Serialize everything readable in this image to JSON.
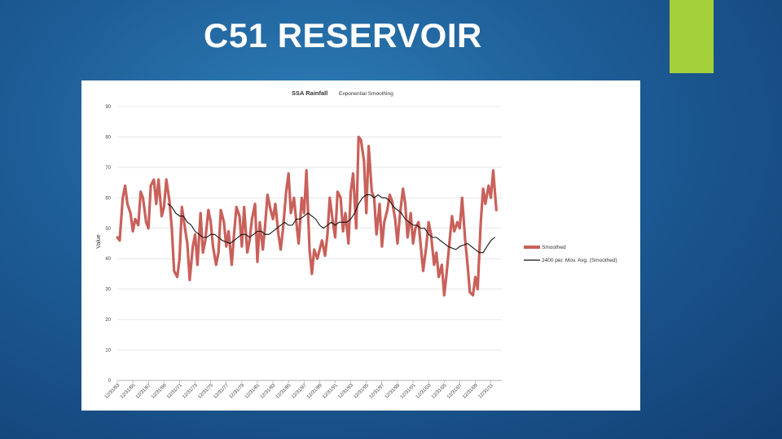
{
  "slide": {
    "title": "C51 RESERVOIR",
    "accent_color": "#a4d03a"
  },
  "chart_data": {
    "type": "line",
    "title": "SSA Rainfall",
    "subtitle": "Exponential Smoothing",
    "ylabel": "Value",
    "xlabel": "",
    "ylim": [
      0,
      90
    ],
    "yticks": [
      0,
      10,
      20,
      30,
      40,
      50,
      60,
      70,
      80,
      90
    ],
    "xticks": [
      "12/31/63",
      "12/31/65",
      "12/31/67",
      "12/31/69",
      "12/31/71",
      "12/31/73",
      "12/31/75",
      "12/31/77",
      "12/31/79",
      "12/31/81",
      "12/31/83",
      "12/31/85",
      "12/31/87",
      "12/31/89",
      "12/31/91",
      "12/31/93",
      "12/31/95",
      "12/31/97",
      "12/31/99",
      "12/31/01",
      "12/31/03",
      "12/31/05",
      "12/31/07",
      "12/31/09",
      "12/31/11"
    ],
    "x_range": [
      1963.0,
      2012.4
    ],
    "grid": true,
    "legend_position": "right",
    "series": [
      {
        "name": "Smoothed",
        "color": "#c9605a",
        "points": [
          [
            1963.0,
            47
          ],
          [
            1963.3,
            46
          ],
          [
            1963.7,
            60
          ],
          [
            1964.0,
            64
          ],
          [
            1964.3,
            58
          ],
          [
            1964.7,
            55
          ],
          [
            1965.0,
            49
          ],
          [
            1965.3,
            53
          ],
          [
            1965.7,
            51
          ],
          [
            1966.0,
            62
          ],
          [
            1966.3,
            60
          ],
          [
            1966.7,
            52
          ],
          [
            1967.0,
            50
          ],
          [
            1967.3,
            64
          ],
          [
            1967.7,
            66
          ],
          [
            1968.0,
            58
          ],
          [
            1968.3,
            66
          ],
          [
            1968.7,
            54
          ],
          [
            1969.0,
            57
          ],
          [
            1969.3,
            66
          ],
          [
            1969.7,
            59
          ],
          [
            1970.0,
            50
          ],
          [
            1970.3,
            36
          ],
          [
            1970.7,
            34
          ],
          [
            1971.0,
            40
          ],
          [
            1971.3,
            57
          ],
          [
            1971.7,
            50
          ],
          [
            1972.0,
            45
          ],
          [
            1972.3,
            33
          ],
          [
            1972.7,
            44
          ],
          [
            1973.0,
            48
          ],
          [
            1973.3,
            38
          ],
          [
            1973.7,
            55
          ],
          [
            1974.0,
            42
          ],
          [
            1974.3,
            46
          ],
          [
            1974.7,
            56
          ],
          [
            1975.0,
            52
          ],
          [
            1975.3,
            44
          ],
          [
            1975.7,
            38
          ],
          [
            1976.0,
            42
          ],
          [
            1976.3,
            56
          ],
          [
            1976.7,
            52
          ],
          [
            1977.0,
            44
          ],
          [
            1977.3,
            49
          ],
          [
            1977.7,
            38
          ],
          [
            1978.0,
            48
          ],
          [
            1978.3,
            57
          ],
          [
            1978.7,
            54
          ],
          [
            1979.0,
            44
          ],
          [
            1979.3,
            57
          ],
          [
            1979.7,
            42
          ],
          [
            1980.0,
            46
          ],
          [
            1980.3,
            53
          ],
          [
            1980.7,
            58
          ],
          [
            1981.0,
            39
          ],
          [
            1981.3,
            52
          ],
          [
            1981.7,
            43
          ],
          [
            1982.0,
            51
          ],
          [
            1982.3,
            61
          ],
          [
            1982.7,
            56
          ],
          [
            1983.0,
            53
          ],
          [
            1983.3,
            58
          ],
          [
            1983.7,
            48
          ],
          [
            1984.0,
            43
          ],
          [
            1984.3,
            50
          ],
          [
            1984.7,
            62
          ],
          [
            1985.0,
            68
          ],
          [
            1985.3,
            55
          ],
          [
            1985.7,
            60
          ],
          [
            1986.0,
            52
          ],
          [
            1986.3,
            45
          ],
          [
            1986.7,
            60
          ],
          [
            1987.0,
            55
          ],
          [
            1987.3,
            69
          ],
          [
            1987.7,
            43
          ],
          [
            1988.0,
            35
          ],
          [
            1988.3,
            43
          ],
          [
            1988.7,
            40
          ],
          [
            1989.0,
            43
          ],
          [
            1989.3,
            46
          ],
          [
            1989.7,
            41
          ],
          [
            1990.0,
            48
          ],
          [
            1990.3,
            60
          ],
          [
            1990.7,
            52
          ],
          [
            1991.0,
            47
          ],
          [
            1991.3,
            62
          ],
          [
            1991.7,
            60
          ],
          [
            1992.0,
            49
          ],
          [
            1992.3,
            55
          ],
          [
            1992.7,
            45
          ],
          [
            1993.0,
            62
          ],
          [
            1993.3,
            68
          ],
          [
            1993.7,
            50
          ],
          [
            1994.0,
            80
          ],
          [
            1994.3,
            79
          ],
          [
            1994.7,
            72
          ],
          [
            1995.0,
            55
          ],
          [
            1995.3,
            77
          ],
          [
            1995.7,
            62
          ],
          [
            1996.0,
            60
          ],
          [
            1996.3,
            48
          ],
          [
            1996.7,
            58
          ],
          [
            1997.0,
            44
          ],
          [
            1997.3,
            52
          ],
          [
            1997.7,
            56
          ],
          [
            1998.0,
            61
          ],
          [
            1998.3,
            59
          ],
          [
            1998.7,
            53
          ],
          [
            1999.0,
            45
          ],
          [
            1999.3,
            54
          ],
          [
            1999.7,
            63
          ],
          [
            2000.0,
            58
          ],
          [
            2000.3,
            47
          ],
          [
            2000.7,
            55
          ],
          [
            2001.0,
            45
          ],
          [
            2001.3,
            50
          ],
          [
            2001.7,
            52
          ],
          [
            2002.0,
            44
          ],
          [
            2002.3,
            36
          ],
          [
            2002.7,
            44
          ],
          [
            2003.0,
            52
          ],
          [
            2003.3,
            48
          ],
          [
            2003.7,
            38
          ],
          [
            2004.0,
            42
          ],
          [
            2004.3,
            34
          ],
          [
            2004.7,
            38
          ],
          [
            2005.0,
            28
          ],
          [
            2005.3,
            35
          ],
          [
            2005.7,
            46
          ],
          [
            2006.0,
            54
          ],
          [
            2006.3,
            49
          ],
          [
            2006.7,
            52
          ],
          [
            2007.0,
            50
          ],
          [
            2007.3,
            60
          ],
          [
            2007.7,
            46
          ],
          [
            2008.0,
            38
          ],
          [
            2008.3,
            29
          ],
          [
            2008.7,
            28
          ],
          [
            2009.0,
            34
          ],
          [
            2009.3,
            30
          ],
          [
            2009.7,
            52
          ],
          [
            2010.0,
            63
          ],
          [
            2010.3,
            58
          ],
          [
            2010.7,
            64
          ],
          [
            2011.0,
            60
          ],
          [
            2011.3,
            69
          ],
          [
            2011.7,
            56
          ]
        ]
      },
      {
        "name": "2400 per. Mov. Avg. (Smoothed)",
        "color": "#111111",
        "points": [
          [
            1969.5,
            58
          ],
          [
            1970.0,
            57
          ],
          [
            1970.5,
            55
          ],
          [
            1971.0,
            54
          ],
          [
            1971.5,
            54
          ],
          [
            1972.0,
            52
          ],
          [
            1972.5,
            51
          ],
          [
            1973.0,
            49
          ],
          [
            1973.5,
            48
          ],
          [
            1974.0,
            47
          ],
          [
            1974.5,
            47
          ],
          [
            1975.0,
            48
          ],
          [
            1975.5,
            48
          ],
          [
            1976.0,
            47
          ],
          [
            1976.5,
            46
          ],
          [
            1977.0,
            45.5
          ],
          [
            1977.5,
            45
          ],
          [
            1978.0,
            46
          ],
          [
            1978.5,
            47
          ],
          [
            1979.0,
            48
          ],
          [
            1979.5,
            48
          ],
          [
            1980.0,
            47
          ],
          [
            1980.5,
            48
          ],
          [
            1981.0,
            49
          ],
          [
            1981.5,
            49
          ],
          [
            1982.0,
            48
          ],
          [
            1982.5,
            48
          ],
          [
            1983.0,
            49
          ],
          [
            1983.5,
            50
          ],
          [
            1984.0,
            51
          ],
          [
            1984.5,
            52
          ],
          [
            1985.0,
            51
          ],
          [
            1985.5,
            51
          ],
          [
            1986.0,
            53
          ],
          [
            1986.5,
            53
          ],
          [
            1987.0,
            54
          ],
          [
            1987.5,
            55
          ],
          [
            1988.0,
            54
          ],
          [
            1988.5,
            53
          ],
          [
            1989.0,
            51
          ],
          [
            1989.5,
            50
          ],
          [
            1990.0,
            51
          ],
          [
            1990.5,
            52
          ],
          [
            1991.0,
            51
          ],
          [
            1991.5,
            52
          ],
          [
            1992.0,
            52
          ],
          [
            1992.5,
            52
          ],
          [
            1993.0,
            53
          ],
          [
            1993.5,
            55
          ],
          [
            1994.0,
            58
          ],
          [
            1994.5,
            60
          ],
          [
            1995.0,
            61
          ],
          [
            1995.5,
            61
          ],
          [
            1996.0,
            60
          ],
          [
            1996.5,
            61
          ],
          [
            1997.0,
            60
          ],
          [
            1997.5,
            60
          ],
          [
            1998.0,
            59
          ],
          [
            1998.5,
            57
          ],
          [
            1999.0,
            56
          ],
          [
            1999.5,
            55
          ],
          [
            2000.0,
            53
          ],
          [
            2000.5,
            52
          ],
          [
            2001.0,
            51
          ],
          [
            2001.5,
            51
          ],
          [
            2002.0,
            50
          ],
          [
            2002.5,
            50
          ],
          [
            2003.0,
            48
          ],
          [
            2003.5,
            47
          ],
          [
            2004.0,
            47
          ],
          [
            2004.5,
            46
          ],
          [
            2005.0,
            45
          ],
          [
            2005.5,
            44
          ],
          [
            2006.0,
            43.5
          ],
          [
            2006.5,
            43
          ],
          [
            2007.0,
            44
          ],
          [
            2007.5,
            44.5
          ],
          [
            2008.0,
            45
          ],
          [
            2008.5,
            44
          ],
          [
            2009.0,
            43
          ],
          [
            2009.5,
            42
          ],
          [
            2010.0,
            42
          ],
          [
            2010.5,
            44
          ],
          [
            2011.0,
            46
          ],
          [
            2011.5,
            47
          ]
        ]
      }
    ]
  }
}
